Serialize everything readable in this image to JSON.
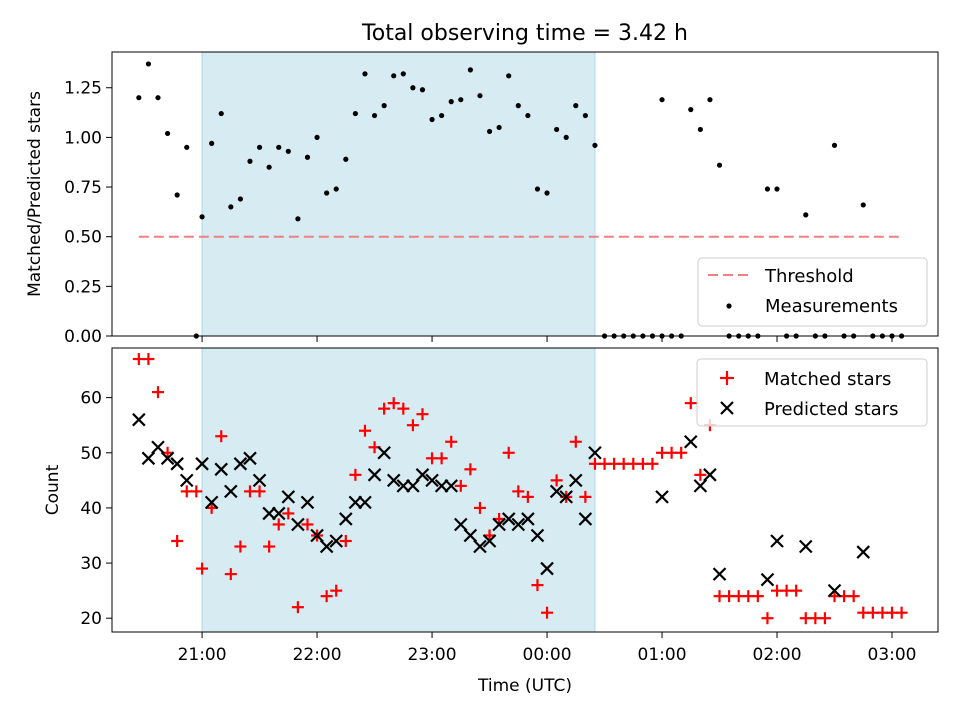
{
  "chart_data": [
    {
      "type": "scatter",
      "title": "Total observing time = 3.42 h",
      "xlabel": "",
      "ylabel": "Matched/Predicted stars",
      "ylim": [
        0,
        1.43
      ],
      "yticks": [
        "0.00",
        "0.25",
        "0.50",
        "0.75",
        "1.00",
        "1.25"
      ],
      "xticks": [
        "21:00",
        "22:00",
        "23:00",
        "00:00",
        "01:00",
        "02:00",
        "03:00"
      ],
      "xlim": [
        "20:13",
        "03:24"
      ],
      "shaded_region": [
        "21:00",
        "00:25"
      ],
      "shaded_color": "#add8e6",
      "threshold": {
        "name": "Threshold",
        "value": 0.5,
        "x_start": "20:27",
        "x_end": "03:06",
        "color": "#f08080",
        "style": "dashed"
      },
      "measurements": {
        "name": "Measurements",
        "color": "#000000",
        "points": [
          {
            "x": "20:27",
            "y": 1.2
          },
          {
            "x": "20:32",
            "y": 1.37
          },
          {
            "x": "20:37",
            "y": 1.2
          },
          {
            "x": "20:42",
            "y": 1.02
          },
          {
            "x": "20:47",
            "y": 0.71
          },
          {
            "x": "20:52",
            "y": 0.95
          },
          {
            "x": "20:57",
            "y": 0.0
          },
          {
            "x": "21:00",
            "y": 0.6
          },
          {
            "x": "21:05",
            "y": 0.97
          },
          {
            "x": "21:10",
            "y": 1.12
          },
          {
            "x": "21:15",
            "y": 0.65
          },
          {
            "x": "21:20",
            "y": 0.69
          },
          {
            "x": "21:25",
            "y": 0.88
          },
          {
            "x": "21:30",
            "y": 0.95
          },
          {
            "x": "21:35",
            "y": 0.85
          },
          {
            "x": "21:40",
            "y": 0.95
          },
          {
            "x": "21:45",
            "y": 0.93
          },
          {
            "x": "21:50",
            "y": 0.59
          },
          {
            "x": "21:55",
            "y": 0.9
          },
          {
            "x": "22:00",
            "y": 1.0
          },
          {
            "x": "22:05",
            "y": 0.72
          },
          {
            "x": "22:10",
            "y": 0.74
          },
          {
            "x": "22:15",
            "y": 0.89
          },
          {
            "x": "22:20",
            "y": 1.12
          },
          {
            "x": "22:25",
            "y": 1.32
          },
          {
            "x": "22:30",
            "y": 1.11
          },
          {
            "x": "22:35",
            "y": 1.16
          },
          {
            "x": "22:40",
            "y": 1.31
          },
          {
            "x": "22:45",
            "y": 1.32
          },
          {
            "x": "22:50",
            "y": 1.25
          },
          {
            "x": "22:55",
            "y": 1.24
          },
          {
            "x": "23:00",
            "y": 1.09
          },
          {
            "x": "23:05",
            "y": 1.11
          },
          {
            "x": "23:10",
            "y": 1.18
          },
          {
            "x": "23:15",
            "y": 1.19
          },
          {
            "x": "23:20",
            "y": 1.34
          },
          {
            "x": "23:25",
            "y": 1.21
          },
          {
            "x": "23:30",
            "y": 1.03
          },
          {
            "x": "23:35",
            "y": 1.05
          },
          {
            "x": "23:40",
            "y": 1.31
          },
          {
            "x": "23:45",
            "y": 1.16
          },
          {
            "x": "23:50",
            "y": 1.11
          },
          {
            "x": "23:55",
            "y": 0.74
          },
          {
            "x": "00:00",
            "y": 0.72
          },
          {
            "x": "00:05",
            "y": 1.04
          },
          {
            "x": "00:10",
            "y": 1.0
          },
          {
            "x": "00:15",
            "y": 1.16
          },
          {
            "x": "00:20",
            "y": 1.11
          },
          {
            "x": "00:25",
            "y": 0.96
          },
          {
            "x": "00:30",
            "y": 0.0
          },
          {
            "x": "00:35",
            "y": 0.0
          },
          {
            "x": "00:40",
            "y": 0.0
          },
          {
            "x": "00:45",
            "y": 0.0
          },
          {
            "x": "00:50",
            "y": 0.0
          },
          {
            "x": "00:55",
            "y": 0.0
          },
          {
            "x": "01:00",
            "y": 0.0
          },
          {
            "x": "01:00",
            "y": 1.19
          },
          {
            "x": "01:05",
            "y": 0.0
          },
          {
            "x": "01:10",
            "y": 0.0
          },
          {
            "x": "01:15",
            "y": 1.14
          },
          {
            "x": "01:20",
            "y": 1.04
          },
          {
            "x": "01:25",
            "y": 1.19
          },
          {
            "x": "01:30",
            "y": 0.86
          },
          {
            "x": "01:35",
            "y": 0.0
          },
          {
            "x": "01:40",
            "y": 0.0
          },
          {
            "x": "01:45",
            "y": 0.0
          },
          {
            "x": "01:50",
            "y": 0.0
          },
          {
            "x": "01:55",
            "y": 0.74
          },
          {
            "x": "02:00",
            "y": 0.74
          },
          {
            "x": "02:05",
            "y": 0.0
          },
          {
            "x": "02:10",
            "y": 0.0
          },
          {
            "x": "02:15",
            "y": 0.61
          },
          {
            "x": "02:20",
            "y": 0.0
          },
          {
            "x": "02:25",
            "y": 0.0
          },
          {
            "x": "02:30",
            "y": 0.96
          },
          {
            "x": "02:35",
            "y": 0.0
          },
          {
            "x": "02:40",
            "y": 0.0
          },
          {
            "x": "02:45",
            "y": 0.66
          },
          {
            "x": "02:50",
            "y": 0.0
          },
          {
            "x": "02:55",
            "y": 0.0
          },
          {
            "x": "03:00",
            "y": 0.0
          },
          {
            "x": "03:05",
            "y": 0.0
          }
        ]
      },
      "legend": [
        "Threshold",
        "Measurements"
      ],
      "legend_placement": "lower-right",
      "grid": false
    },
    {
      "type": "scatter",
      "title": "",
      "xlabel": "Time (UTC)",
      "ylabel": "Count",
      "ylim": [
        17.5,
        69
      ],
      "yticks": [
        "20",
        "30",
        "40",
        "50",
        "60"
      ],
      "xticks": [
        "21:00",
        "22:00",
        "23:00",
        "00:00",
        "01:00",
        "02:00",
        "03:00"
      ],
      "xlim": [
        "20:13",
        "03:24"
      ],
      "shaded_region": [
        "21:00",
        "00:25"
      ],
      "shaded_color": "#add8e6",
      "series": [
        {
          "name": "Matched stars",
          "marker": "plus",
          "color": "#ff0000",
          "x": [
            "20:27",
            "20:32",
            "20:37",
            "20:42",
            "20:47",
            "20:52",
            "20:57",
            "21:00",
            "21:05",
            "21:10",
            "21:15",
            "21:20",
            "21:25",
            "21:30",
            "21:35",
            "21:40",
            "21:45",
            "21:50",
            "21:55",
            "22:00",
            "22:05",
            "22:10",
            "22:15",
            "22:20",
            "22:25",
            "22:30",
            "22:35",
            "22:40",
            "22:45",
            "22:50",
            "22:55",
            "23:00",
            "23:05",
            "23:10",
            "23:15",
            "23:20",
            "23:25",
            "23:30",
            "23:35",
            "23:40",
            "23:45",
            "23:50",
            "23:55",
            "00:00",
            "00:05",
            "00:10",
            "00:15",
            "00:20",
            "00:25",
            "00:30",
            "00:35",
            "00:40",
            "00:45",
            "00:50",
            "00:55",
            "01:00",
            "01:05",
            "01:10",
            "01:15",
            "01:20",
            "01:25",
            "01:30",
            "01:35",
            "01:40",
            "01:45",
            "01:50",
            "01:55",
            "02:00",
            "02:05",
            "02:10",
            "02:15",
            "02:20",
            "02:25",
            "02:30",
            "02:35",
            "02:40",
            "02:45",
            "02:50",
            "02:55",
            "03:00",
            "03:05"
          ],
          "values": [
            67,
            67,
            61,
            50,
            34,
            43,
            43,
            29,
            40,
            53,
            28,
            33,
            43,
            43,
            33,
            37,
            39,
            22,
            37,
            35,
            24,
            25,
            34,
            46,
            54,
            51,
            58,
            59,
            58,
            55,
            57,
            49,
            49,
            52,
            44,
            47,
            40,
            35,
            38,
            50,
            43,
            42,
            26,
            21,
            45,
            42,
            52,
            42,
            48,
            48,
            48,
            48,
            48,
            48,
            48,
            50,
            50,
            50,
            59,
            46,
            55,
            24,
            24,
            24,
            24,
            24,
            20,
            25,
            25,
            25,
            20,
            20,
            20,
            24,
            24,
            24,
            21,
            21,
            21,
            21,
            21
          ]
        },
        {
          "name": "Predicted stars",
          "marker": "x",
          "color": "#000000",
          "x": [
            "20:27",
            "20:32",
            "20:37",
            "20:42",
            "20:47",
            "20:52",
            "21:00",
            "21:05",
            "21:10",
            "21:15",
            "21:20",
            "21:25",
            "21:30",
            "21:35",
            "21:40",
            "21:45",
            "21:50",
            "21:55",
            "22:00",
            "22:05",
            "22:10",
            "22:15",
            "22:20",
            "22:25",
            "22:30",
            "22:35",
            "22:40",
            "22:45",
            "22:50",
            "22:55",
            "23:00",
            "23:05",
            "23:10",
            "23:15",
            "23:20",
            "23:25",
            "23:30",
            "23:35",
            "23:40",
            "23:45",
            "23:50",
            "23:55",
            "00:00",
            "00:05",
            "00:10",
            "00:15",
            "00:20",
            "00:25",
            "01:00",
            "01:15",
            "01:20",
            "01:25",
            "01:30",
            "01:55",
            "02:00",
            "02:15",
            "02:30",
            "02:45"
          ],
          "values": [
            56,
            49,
            51,
            49,
            48,
            45,
            48,
            41,
            47,
            43,
            48,
            49,
            45,
            39,
            39,
            42,
            37,
            41,
            35,
            33,
            34,
            38,
            41,
            41,
            46,
            50,
            45,
            44,
            44,
            46,
            45,
            44,
            44,
            37,
            35,
            33,
            34,
            37,
            38,
            37,
            38,
            35,
            29,
            43,
            42,
            45,
            38,
            50,
            42,
            52,
            44,
            46,
            28,
            27,
            34,
            33,
            25,
            32
          ]
        }
      ],
      "legend": [
        "Matched stars",
        "Predicted stars"
      ],
      "legend_placement": "upper-right",
      "grid": false
    }
  ]
}
